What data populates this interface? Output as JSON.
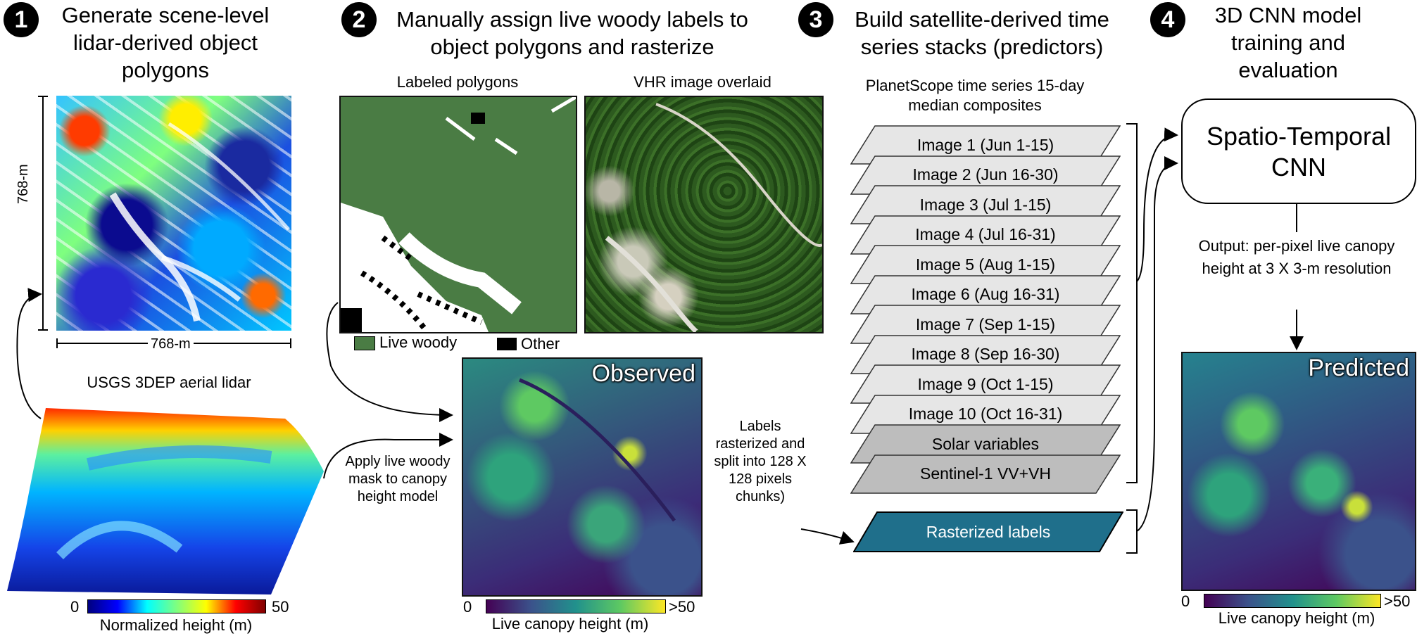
{
  "steps": [
    {
      "num": "1",
      "title": "Generate scene-level lidar-derived object polygons"
    },
    {
      "num": "2",
      "title": "Manually assign live woody labels to object polygons and rasterize"
    },
    {
      "num": "3",
      "title": "Build satellite-derived time series stacks (predictors)"
    },
    {
      "num": "4",
      "title": "3D CNN model training and evaluation"
    }
  ],
  "panel1": {
    "dim_y": "768-m",
    "dim_x": "768-m",
    "lidar_title": "USGS 3DEP aerial lidar",
    "cbar_min": "0",
    "cbar_max": "50",
    "cbar_label": "Normalized height (m)"
  },
  "panel2": {
    "labeled_title": "Labeled polygons",
    "vhr_title": "VHR image overlaid",
    "legend_live": "Live woody",
    "legend_other": "Other",
    "observed": "Observed",
    "apply_mask_note": "Apply live woody mask to canopy height model",
    "labels_note": "Labels rasterized and split into 128 X 128 pixels chunks)",
    "cbar_min": "0",
    "cbar_max": ">50",
    "cbar_label": "Live canopy height (m)"
  },
  "panel3": {
    "subtitle": "PlanetScope time series 15-day median composites",
    "images": [
      "Image 1 (Jun 1-15)",
      "Image 2 (Jun 16-30)",
      "Image 3 (Jul 1-15)",
      "Image 4 (Jul 16-31)",
      "Image 5 (Aug 1-15)",
      "Image 6 (Aug 16-31)",
      "Image 7 (Sep 1-15)",
      "Image 8 (Sep 16-30)",
      "Image 9 (Oct 1-15)",
      "Image 10 (Oct 16-31)"
    ],
    "extra": [
      "Solar variables",
      "Sentinel-1 VV+VH"
    ],
    "rasterized": "Rasterized labels"
  },
  "panel4": {
    "model": "Spatio-Temporal CNN",
    "output_note": "Output: per-pixel live canopy height at 3 X 3-m resolution",
    "predicted": "Predicted",
    "cbar_min": "0",
    "cbar_max": ">50",
    "cbar_label": "Live canopy height (m)"
  },
  "colors": {
    "jet": [
      "#00007f",
      "#0000ff",
      "#00ffff",
      "#7fff7f",
      "#ffff00",
      "#ff0000",
      "#7f0000"
    ],
    "viridis": [
      "#440154",
      "#3b528b",
      "#21918c",
      "#5ec962",
      "#fde725"
    ],
    "live_woody": "#4a7c44",
    "stack_fill": "#e6e6e6",
    "extra_fill": "#bdbdbd",
    "rasterized_fill": "#1f6f8b"
  }
}
